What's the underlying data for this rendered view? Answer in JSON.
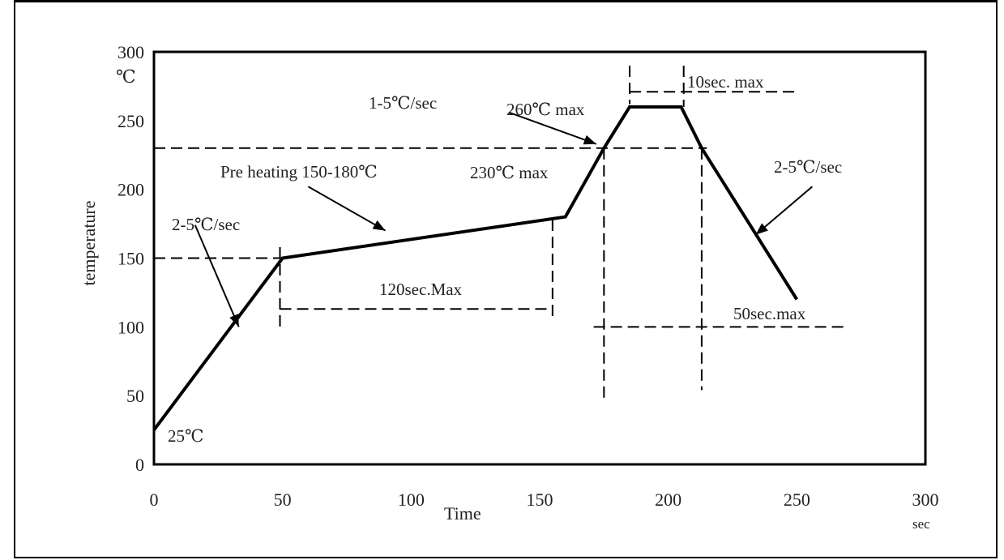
{
  "chart_data": {
    "type": "line",
    "title": "",
    "xlabel": "Time",
    "ylabel": "temperature",
    "x_unit": "sec",
    "y_unit": "℃",
    "xlim": [
      0,
      300
    ],
    "ylim": [
      0,
      300
    ],
    "x_ticks": [
      "0",
      "50",
      "100",
      "150",
      "200",
      "250",
      "300"
    ],
    "y_ticks": [
      "0",
      "50",
      "100",
      "150",
      "200",
      "250",
      "300"
    ],
    "grid": false,
    "series": [
      {
        "x": [
          0,
          50,
          160,
          175,
          185,
          205,
          213,
          250
        ],
        "y": [
          25,
          150,
          180,
          230,
          260,
          260,
          230,
          120
        ]
      }
    ],
    "annotations": {
      "start_temp": "25℃",
      "ramp1": "2-5℃/sec",
      "preheat": "Pre heating  150-180℃",
      "preheat_time": "120sec.Max",
      "ramp2": "1-5℃/sec",
      "max230": "230℃  max",
      "peak": "260℃  max",
      "peak_time": "10sec. max",
      "cool": "2-5℃/sec",
      "above230_time": "50sec.max"
    }
  },
  "colors": {
    "line": "#000000",
    "text": "#222222"
  }
}
